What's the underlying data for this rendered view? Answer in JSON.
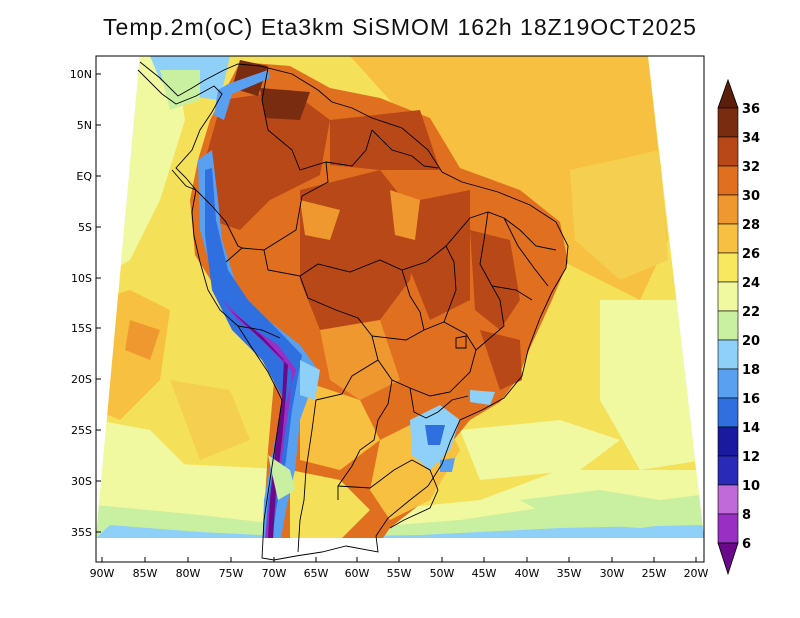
{
  "title": "Temp.2m(oC)  Eta3km  SiSMOM  162h  18Z19OCT2025",
  "map": {
    "variable": "2 m air temperature",
    "units": "oC",
    "region": "South America",
    "lat_labels": [
      "10N",
      "5N",
      "EQ",
      "5S",
      "10S",
      "15S",
      "20S",
      "25S",
      "30S",
      "35S"
    ],
    "lon_labels": [
      "90W",
      "85W",
      "80W",
      "75W",
      "70W",
      "65W",
      "60W",
      "55W",
      "50W",
      "45W",
      "40W",
      "35W",
      "30W",
      "25W",
      "20W"
    ]
  },
  "colorbar": {
    "levels": [
      "6",
      "8",
      "10",
      "12",
      "14",
      "16",
      "18",
      "20",
      "22",
      "24",
      "26",
      "28",
      "30",
      "32",
      "34",
      "36"
    ],
    "colors": [
      "#6a0a8a",
      "#9a2fc4",
      "#c06ad8",
      "#2a2ab8",
      "#1a1aa0",
      "#2f6fe0",
      "#5aa0f0",
      "#8ed0f8",
      "#c8f0a0",
      "#f0f8a0",
      "#f8e860",
      "#f8c040",
      "#f09830",
      "#e07020",
      "#b84818",
      "#7a2c10",
      "#5a1e0a"
    ]
  }
}
